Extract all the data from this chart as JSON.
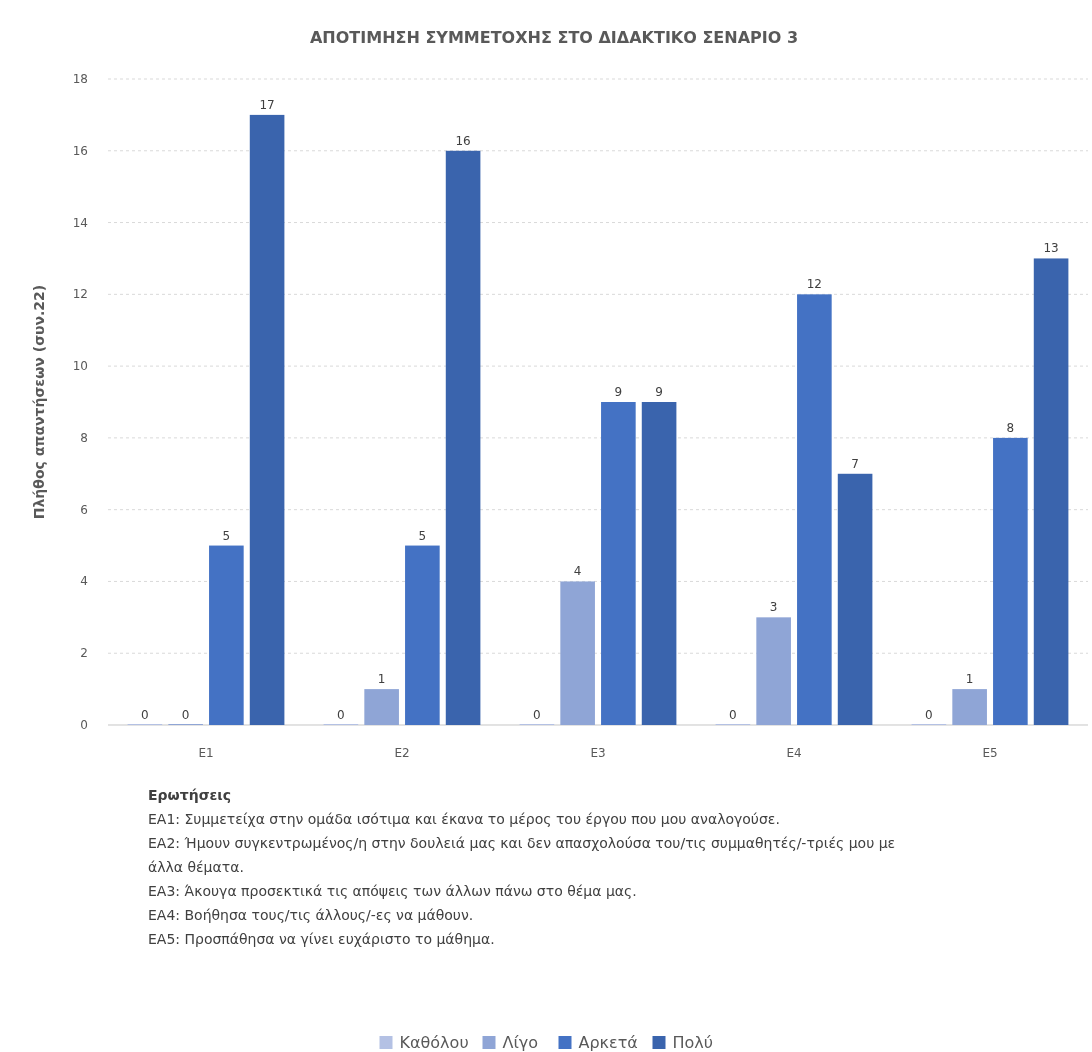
{
  "chart_data": {
    "type": "bar",
    "title": "ΑΠΟΤΙΜΗΣΗ ΣΥΜΜΕΤΟΧΗΣ ΣΤΟ ΔΙΔΑΚΤΙΚΟ ΣΕΝΑΡΙΟ 3",
    "ylabel": "Πλήθος απαντήσεων (συν.22)",
    "categories": [
      "Ε1",
      "Ε2",
      "Ε3",
      "Ε4",
      "Ε5"
    ],
    "series": [
      {
        "name": "Καθόλου",
        "color": "#b4c1e4",
        "values": [
          0,
          0,
          0,
          0,
          0
        ]
      },
      {
        "name": "Λίγο",
        "color": "#8fa5d6",
        "values": [
          0,
          1,
          4,
          3,
          1
        ]
      },
      {
        "name": "Αρκετά",
        "color": "#4472c4",
        "values": [
          5,
          5,
          9,
          12,
          8
        ]
      },
      {
        "name": "Πολύ",
        "color": "#3a64ad",
        "values": [
          17,
          16,
          9,
          7,
          13
        ]
      }
    ],
    "ylim": [
      0,
      18
    ],
    "yticks": [
      0,
      2,
      4,
      6,
      8,
      10,
      12,
      14,
      16,
      18
    ],
    "grid": "y",
    "legend": "bottom",
    "data_labels": true,
    "annotations": [
      "Ερωτήσεις",
      "ΕΑ1: Συμμετείχα στην ομάδα ισότιμα και έκανα το μέρος του έργου που μου αναλογούσε.",
      "ΕΑ2: Ήμουν συγκεντρωμένος/η στην δουλειά μας και δεν απασχολούσα του/τις συμμαθητές/-τριές μου με άλλα θέματα.",
      "ΕΑ3: Άκουγα προσεκτικά τις απόψεις των άλλων πάνω στο θέμα μας.",
      "ΕΑ4: Βοήθησα τους/τις άλλους/-ες να μάθουν.",
      "ΕΑ5: Προσπάθησα να γίνει ευχάριστο το μάθημα."
    ]
  }
}
